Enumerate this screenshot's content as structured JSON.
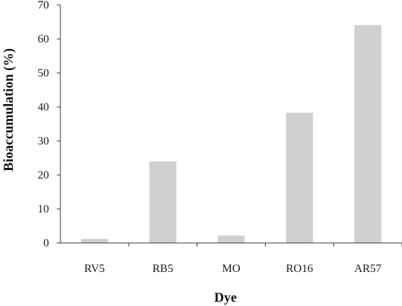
{
  "chart_data": {
    "type": "bar",
    "categories": [
      "RV5",
      "RB5",
      "MO",
      "RO16",
      "AR57"
    ],
    "values": [
      1.2,
      24.0,
      2.2,
      38.3,
      64.1
    ],
    "title": "",
    "xlabel": "Dye",
    "ylabel": "Bioaccumulation (%)",
    "ylim": [
      0,
      70
    ],
    "yticks": [
      "0",
      "10",
      "20",
      "30",
      "40",
      "50",
      "60",
      "70"
    ],
    "grid": false,
    "legend": "none",
    "bar_color": "#d0d0d0"
  }
}
